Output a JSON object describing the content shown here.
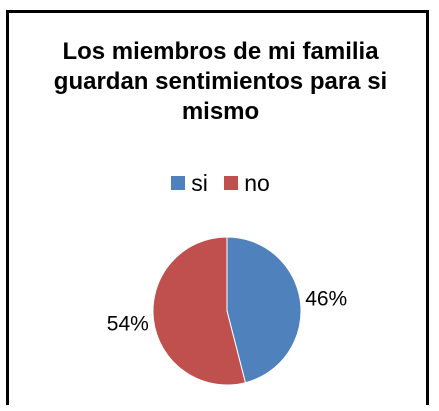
{
  "chart_data": {
    "type": "pie",
    "title": "Los miembros de mi familia guardan sentimientos para si mismo",
    "categories": [
      "si",
      "no"
    ],
    "values": [
      46,
      54
    ],
    "value_labels": [
      "46%",
      "54%"
    ],
    "colors": [
      "#4f81bd",
      "#c0504d"
    ],
    "legend_position": "top"
  }
}
